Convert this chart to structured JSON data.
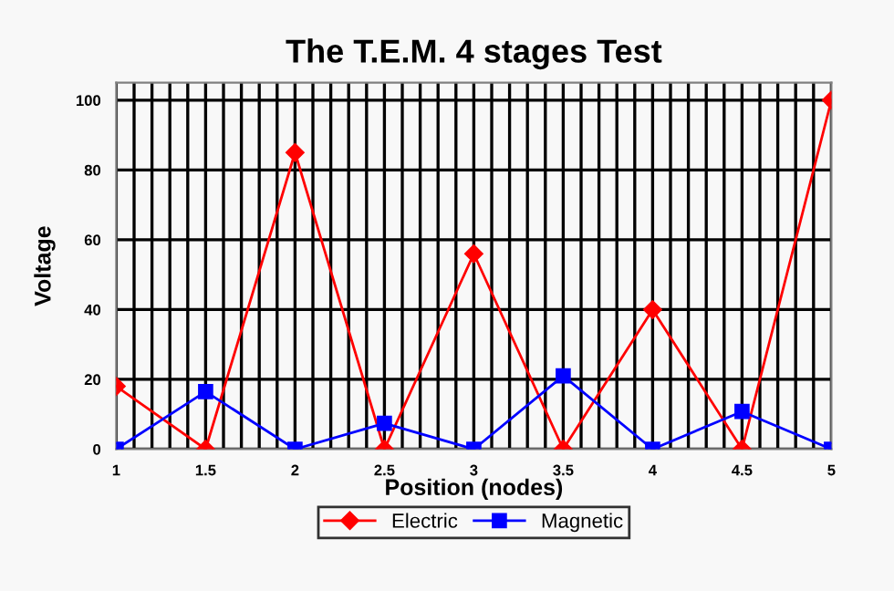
{
  "chart_data": {
    "type": "line",
    "title": "The T.E.M. 4 stages Test",
    "xlabel": "Position (nodes)",
    "ylabel": "Voltage",
    "x": [
      1,
      1.5,
      2,
      2.5,
      3,
      3.5,
      4,
      4.5,
      5
    ],
    "series": [
      {
        "name": "Electric",
        "color": "#ff0000",
        "marker": "diamond",
        "values": [
          18,
          0,
          85,
          0,
          56,
          0,
          40,
          0,
          100
        ]
      },
      {
        "name": "Magnetic",
        "color": "#0000ff",
        "marker": "square",
        "values": [
          0,
          16.5,
          0,
          7.4,
          0,
          21,
          0,
          10.8,
          0
        ]
      }
    ],
    "xlim": [
      1,
      5
    ],
    "ylim": [
      0,
      105
    ],
    "xticks": [
      1,
      {
        "value": 1.1,
        "label": null
      },
      {
        "value": 1.2,
        "label": null
      },
      {
        "value": 1.3,
        "label": null
      },
      {
        "value": 1.4,
        "label": null
      },
      1.5,
      {
        "value": 1.6,
        "label": null
      },
      {
        "value": 1.7,
        "label": null
      },
      {
        "value": 1.8,
        "label": null
      },
      {
        "value": 1.9,
        "label": null
      },
      2,
      {
        "value": 2.1,
        "label": null
      },
      {
        "value": 2.2,
        "label": null
      },
      {
        "value": 2.3,
        "label": null
      },
      {
        "value": 2.4,
        "label": null
      },
      2.5,
      {
        "value": 2.6,
        "label": null
      },
      {
        "value": 2.7,
        "label": null
      },
      {
        "value": 2.8,
        "label": null
      },
      {
        "value": 2.9,
        "label": null
      },
      3,
      {
        "value": 3.1,
        "label": null
      },
      {
        "value": 3.2,
        "label": null
      },
      {
        "value": 3.3,
        "label": null
      },
      {
        "value": 3.4,
        "label": null
      },
      3.5,
      {
        "value": 3.6,
        "label": null
      },
      {
        "value": 3.7,
        "label": null
      },
      {
        "value": 3.8,
        "label": null
      },
      {
        "value": 3.9,
        "label": null
      },
      4,
      {
        "value": 4.1,
        "label": null
      },
      {
        "value": 4.2,
        "label": null
      },
      {
        "value": 4.3,
        "label": null
      },
      {
        "value": 4.4,
        "label": null
      },
      4.5,
      {
        "value": 4.6,
        "label": null
      },
      {
        "value": 4.7,
        "label": null
      },
      {
        "value": 4.8,
        "label": null
      },
      {
        "value": 4.9,
        "label": null
      },
      5
    ],
    "yticks": [
      0,
      20,
      40,
      60,
      80,
      100
    ],
    "grid": true,
    "legend": "bottom",
    "line_style": "solid"
  }
}
